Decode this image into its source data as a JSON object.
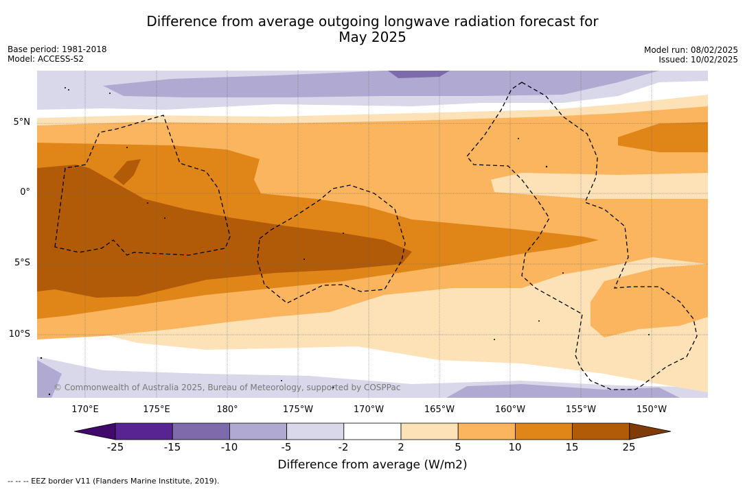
{
  "title": {
    "line1": "Difference from average outgoing longwave radiation forecast for",
    "line2": "May 2025"
  },
  "meta_left": {
    "base_period": "Base period: 1981-2018",
    "model": "Model: ACCESS-S2"
  },
  "meta_right": {
    "model_run": "Model run: 08/02/2025",
    "issued": "Issued: 10/02/2025"
  },
  "map": {
    "lat_labels": [
      "5°N",
      "0°",
      "5°S",
      "10°S"
    ],
    "lon_labels": [
      "170°E",
      "175°E",
      "180°",
      "175°W",
      "170°W",
      "165°W",
      "160°W",
      "155°W",
      "150°W"
    ],
    "copyright": "© Commonwealth of Australia 2025, Bureau of Meteorology, supported by COSPPac"
  },
  "colorbar": {
    "ticks": [
      "-25",
      "-15",
      "-10",
      "-5",
      "-2",
      "2",
      "5",
      "10",
      "15",
      "25"
    ],
    "colors": [
      "#3f0a6b",
      "#582491",
      "#7d6bab",
      "#b0a9d1",
      "#d9d8ea",
      "#ffffff",
      "#fde2b8",
      "#fbb55f",
      "#e08518",
      "#b15a08",
      "#7f3b08"
    ],
    "title": "Difference from average (W/m2)"
  },
  "legend_note": "--  --  -- EEZ border V11 (Flanders Marine Institute, 2019)."
}
